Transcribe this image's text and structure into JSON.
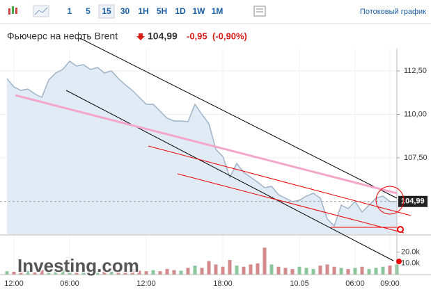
{
  "toolbar": {
    "intervals": [
      "1",
      "5",
      "15",
      "30",
      "1H",
      "5H",
      "1D",
      "1W",
      "1M"
    ],
    "selected": 2,
    "stream_label": "Потоковый график"
  },
  "header": {
    "title": "Фьючерс на нефть Brent",
    "price": "104,99",
    "change": "-0,95",
    "change_pct": "(-0,90%)"
  },
  "logo": "Investing.com",
  "chart_data": {
    "type": "area",
    "categories": [
      null,
      "12:00",
      null,
      null,
      null,
      null,
      null,
      null,
      null,
      "06:00",
      null,
      null,
      null,
      null,
      null,
      null,
      null,
      null,
      null,
      null,
      "12:00",
      null,
      null,
      null,
      null,
      null,
      null,
      null,
      null,
      null,
      null,
      "18:00",
      null,
      null,
      null,
      null,
      null,
      null,
      null,
      null,
      null,
      null,
      "10.05",
      null,
      null,
      null,
      null,
      null,
      null,
      null,
      "06:00",
      null,
      null,
      null,
      null,
      "09:00",
      null
    ],
    "series": [
      {
        "color": "#9fb3c8",
        "fill": "#e1ebf5",
        "values": [
          112.06,
          111.58,
          111.38,
          111.46,
          111.18,
          110.98,
          111.98,
          112.38,
          112.58,
          113.06,
          112.78,
          112.86,
          112.58,
          112.7,
          112.38,
          112.5,
          112.06,
          111.7,
          111.38,
          110.98,
          110.58,
          110.58,
          110.18,
          109.78,
          109.62,
          109.62,
          109.58,
          110.58,
          110.0,
          109.46,
          107.98,
          107.58,
          106.38,
          107.18,
          106.66,
          106.38,
          106.1,
          105.78,
          105.86,
          105.38,
          105.18,
          104.98,
          105.06,
          105.3,
          105.46,
          105.18,
          103.98,
          103.58,
          104.78,
          104.58,
          104.98,
          104.38,
          104.78,
          105.18,
          105.3,
          104.98,
          104.99
        ]
      },
      {
        "axis": "y2",
        "color": "#d48a8a",
        "up_color": "#8cc79b",
        "values": [
          3000,
          2500,
          2000,
          3500,
          2000,
          4000,
          3000,
          2500,
          5000,
          3000,
          2000,
          3000,
          2500,
          2000,
          3000,
          2500,
          3000,
          4000,
          5000,
          3500,
          3000,
          4000,
          3000,
          5000,
          4000,
          3500,
          6000,
          8000,
          6000,
          12000,
          9000,
          7000,
          13000,
          8000,
          7000,
          9000,
          10000,
          24000,
          9000,
          7000,
          6000,
          5000,
          7000,
          6000,
          5000,
          8000,
          9000,
          7000,
          6000,
          5000,
          6000,
          7000,
          5000,
          6000,
          7000,
          8000,
          9000
        ]
      }
    ],
    "ylim": [
      103.1,
      113.18
    ],
    "yticks": [
      {
        "value": 112.5,
        "label": "112,50"
      },
      {
        "value": 110,
        "label": "110,00"
      },
      {
        "value": 107.5,
        "label": "107,50"
      }
    ],
    "y2lim": [
      0,
      34000
    ],
    "y2ticks": [
      {
        "value": 20000,
        "label": "20.0k"
      },
      {
        "value": 10000,
        "label": "10.0k"
      }
    ],
    "grid": true
  }
}
